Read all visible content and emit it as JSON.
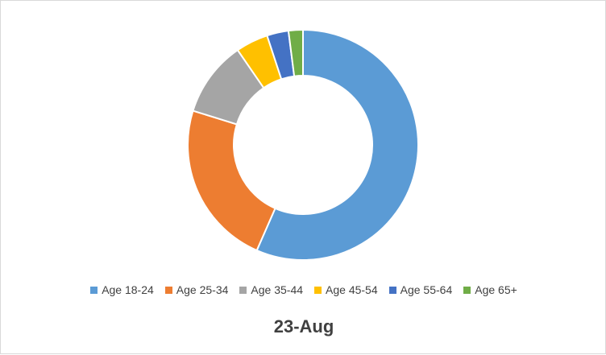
{
  "chart_data": {
    "type": "pie",
    "subtype": "donut",
    "title": "23-Aug",
    "categories": [
      "Age 18-24",
      "Age 25-34",
      "Age 35-44",
      "Age 45-54",
      "Age 55-64",
      "Age 65+"
    ],
    "values": [
      56,
      23,
      10.5,
      4.5,
      3,
      2
    ],
    "unit": "percent (estimated)",
    "colors": [
      "#5B9BD5",
      "#ED7D31",
      "#A5A5A5",
      "#FFC000",
      "#4472C4",
      "#70AD47"
    ],
    "legend_position": "bottom"
  }
}
